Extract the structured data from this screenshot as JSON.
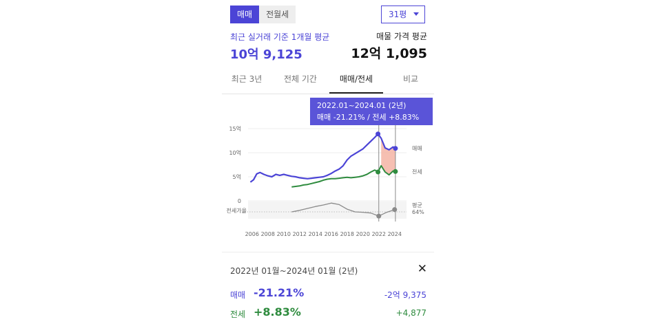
{
  "toggle": {
    "sale": "매매",
    "rent": "전월세"
  },
  "size_select": {
    "value": "31평"
  },
  "summary": {
    "left_label": "최근 실거래 기준 1개월 평균",
    "left_value": "10억 9,125",
    "right_label": "매물 가격 평균",
    "right_value": "12억 1,095"
  },
  "tabs": [
    "최근 3년",
    "전체 기간",
    "매매/전세",
    "비교"
  ],
  "tooltip": {
    "range": "2022.01~2024.01 (2년)",
    "text": "매매 -21.21%  /  전세 +8.83%"
  },
  "colors": {
    "sale": "#4b44d6",
    "rent": "#2e8b3e",
    "ratio": "#8a8a8a",
    "drop_fill": "#f4b4a4"
  },
  "chart_data": {
    "type": "line",
    "x_ticks": [
      "2006",
      "2008",
      "2010",
      "2012",
      "2014",
      "2016",
      "2018",
      "2020",
      "2022",
      "2024"
    ],
    "y_ticks": [
      "15억",
      "10억",
      "5억",
      "0"
    ],
    "ratio_label": "전세가율",
    "xlim": [
      2005.5,
      2025.5
    ],
    "ylim": [
      0,
      15
    ],
    "series": [
      {
        "name": "매매",
        "x": [
          2005.8,
          2006.2,
          2006.6,
          2007,
          2007.5,
          2008,
          2008.5,
          2009,
          2009.5,
          2010,
          2010.5,
          2011,
          2011.5,
          2012,
          2012.5,
          2013,
          2013.5,
          2014,
          2014.5,
          2015,
          2015.5,
          2016,
          2016.5,
          2017,
          2017.5,
          2018,
          2018.5,
          2019,
          2019.5,
          2020,
          2020.5,
          2021,
          2021.5,
          2021.9,
          2022.3,
          2022.8,
          2023.3,
          2023.8,
          2024.1
        ],
        "values": [
          3.9,
          4.4,
          5.6,
          5.9,
          5.5,
          5.2,
          5.0,
          5.5,
          5.3,
          5.5,
          5.3,
          5.1,
          5.0,
          4.8,
          4.7,
          4.6,
          4.7,
          4.8,
          4.9,
          5.0,
          5.3,
          5.7,
          6.2,
          6.6,
          7.3,
          8.5,
          9.3,
          9.8,
          10.3,
          10.8,
          11.6,
          12.4,
          13.2,
          13.9,
          13.0,
          11.0,
          10.6,
          11.2,
          10.9
        ]
      },
      {
        "name": "전세",
        "x": [
          2011,
          2011.5,
          2012,
          2012.5,
          2013,
          2013.5,
          2014,
          2014.5,
          2015,
          2015.5,
          2016,
          2016.5,
          2017,
          2017.5,
          2018,
          2018.5,
          2019,
          2019.5,
          2020,
          2020.5,
          2021,
          2021.5,
          2021.9,
          2022.3,
          2022.8,
          2023.3,
          2023.8,
          2024.1
        ],
        "values": [
          2.9,
          3.0,
          3.1,
          3.3,
          3.4,
          3.6,
          3.8,
          4.0,
          4.3,
          4.5,
          4.6,
          4.6,
          4.7,
          4.8,
          4.9,
          4.8,
          4.9,
          5.0,
          5.2,
          5.5,
          6.0,
          6.4,
          6.0,
          7.3,
          6.0,
          5.4,
          6.2,
          6.1
        ]
      }
    ],
    "ratio_series": {
      "x": [
        2011,
        2012,
        2013,
        2014,
        2015,
        2016,
        2017,
        2018,
        2019,
        2020,
        2021,
        2022,
        2023,
        2024
      ],
      "values": [
        58,
        62,
        67,
        72,
        76,
        81,
        77,
        65,
        58,
        57,
        55,
        47,
        57,
        64
      ]
    },
    "highlight": {
      "from": 2022.0,
      "to": 2024.1
    },
    "end_labels": {
      "sale": "매매",
      "rent": "전세",
      "ratio_top": "평균",
      "ratio_bottom": "64%"
    }
  },
  "detail": {
    "range": "2022년 01월~2024년 01월 (2년)",
    "sale": {
      "label": "매매",
      "pct": "-21.21%",
      "amount": "-2억 9,375"
    },
    "rent": {
      "label": "전세",
      "pct": "+8.83%",
      "amount": "+4,877"
    }
  }
}
